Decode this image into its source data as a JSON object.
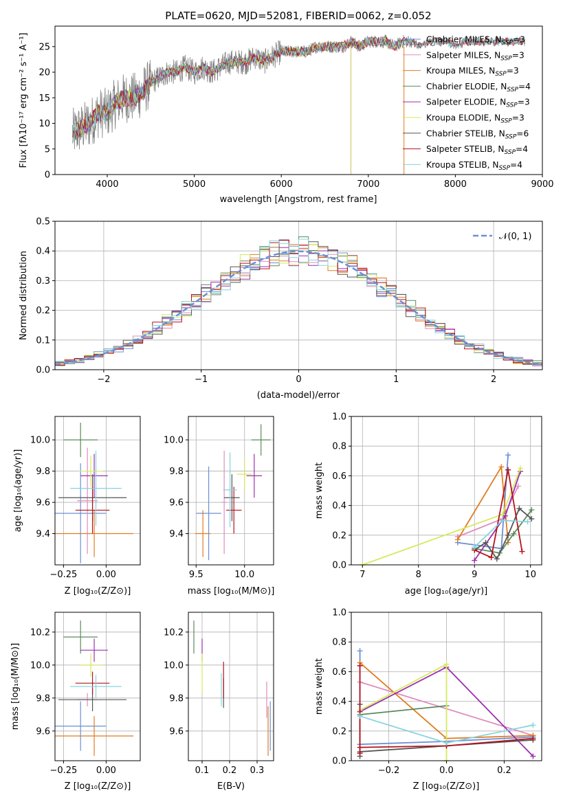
{
  "colors": {
    "chabrier_miles": "#6b8fd6",
    "salpeter_miles": "#e08bbd",
    "kroupa_miles": "#e07b1f",
    "chabrier_elodie": "#5a8a5a",
    "salpeter_elodie": "#9b2fae",
    "kroupa_elodie": "#d4ea5a",
    "chabrier_stelib": "#555555",
    "salpeter_stelib": "#b5121b",
    "kroupa_stelib": "#86d3dd",
    "data": "#808080"
  },
  "chart_data": [
    {
      "id": "spectrum",
      "type": "line",
      "title": "PLATE=0620, MJD=52081, FIBERID=0062, z=0.052",
      "xlabel": "wavelength [Angstrom, rest frame]",
      "ylabel": "Flux [fλ10⁻¹⁷ erg cm⁻² s⁻¹ A⁻¹]",
      "xlim": [
        3400,
        9000
      ],
      "ylim": [
        0,
        29
      ],
      "xticks": [
        "4000",
        "5000",
        "6000",
        "7000",
        "8000",
        "9000"
      ],
      "yticks": [
        "0",
        "5",
        "10",
        "15",
        "20",
        "25"
      ],
      "legend_position": "upper-right",
      "legend": [
        {
          "label": "Chabrier MILES, N",
          "sub": "SSP",
          "tail": "=3",
          "color": "chabrier_miles"
        },
        {
          "label": "Salpeter MILES, N",
          "sub": "SSP",
          "tail": "=3",
          "color": "salpeter_miles"
        },
        {
          "label": "Kroupa MILES, N",
          "sub": "SSP",
          "tail": "=3",
          "color": "kroupa_miles"
        },
        {
          "label": "Chabrier ELODIE, N",
          "sub": "SSP",
          "tail": "=4",
          "color": "chabrier_elodie"
        },
        {
          "label": "Salpeter ELODIE, N",
          "sub": "SSP",
          "tail": "=3",
          "color": "salpeter_elodie"
        },
        {
          "label": "Kroupa ELODIE, N",
          "sub": "SSP",
          "tail": "=3",
          "color": "kroupa_elodie"
        },
        {
          "label": "Chabrier STELIB, N",
          "sub": "SSP",
          "tail": "=6",
          "color": "chabrier_stelib"
        },
        {
          "label": "Salpeter STELIB, N",
          "sub": "SSP",
          "tail": "=4",
          "color": "salpeter_stelib"
        },
        {
          "label": "Kroupa STELIB, N",
          "sub": "SSP",
          "tail": "=4",
          "color": "kroupa_stelib"
        }
      ],
      "continuum": [
        [
          3600,
          8
        ],
        [
          3700,
          9
        ],
        [
          3800,
          10
        ],
        [
          3900,
          12
        ],
        [
          4000,
          12
        ],
        [
          4100,
          14
        ],
        [
          4200,
          15
        ],
        [
          4300,
          15
        ],
        [
          4400,
          16
        ],
        [
          4500,
          18
        ],
        [
          4600,
          19
        ],
        [
          4700,
          20
        ],
        [
          4800,
          20
        ],
        [
          4900,
          21
        ],
        [
          5000,
          20
        ],
        [
          5100,
          21
        ],
        [
          5200,
          20
        ],
        [
          5300,
          21
        ],
        [
          5400,
          22
        ],
        [
          5500,
          22
        ],
        [
          5600,
          22
        ],
        [
          5700,
          23
        ],
        [
          5800,
          22
        ],
        [
          5900,
          23
        ],
        [
          6000,
          24
        ],
        [
          6100,
          24
        ],
        [
          6200,
          24
        ],
        [
          6300,
          24
        ],
        [
          6400,
          25
        ],
        [
          6500,
          25
        ],
        [
          6600,
          25
        ],
        [
          6700,
          25
        ],
        [
          6800,
          26
        ],
        [
          6900,
          25
        ],
        [
          7000,
          26
        ],
        [
          7100,
          26
        ],
        [
          7200,
          26
        ],
        [
          7300,
          25
        ],
        [
          7400,
          26
        ],
        [
          7500,
          26
        ],
        [
          7600,
          25
        ],
        [
          7700,
          26
        ],
        [
          7800,
          26
        ],
        [
          7900,
          26
        ],
        [
          8000,
          25
        ],
        [
          8100,
          26
        ],
        [
          8200,
          26
        ],
        [
          8300,
          26
        ],
        [
          8400,
          26
        ],
        [
          8500,
          26
        ],
        [
          8600,
          26
        ],
        [
          8700,
          26
        ],
        [
          8800,
          26
        ]
      ]
    },
    {
      "id": "residuals",
      "type": "bar",
      "xlabel": "(data-model)/error",
      "ylabel": "Normed distribution",
      "xlim": [
        -2.5,
        2.5
      ],
      "ylim": [
        0,
        0.5
      ],
      "xticks": [
        "−2",
        "−1",
        "0",
        "1",
        "2"
      ],
      "yticks": [
        "0.0",
        "0.1",
        "0.2",
        "0.3",
        "0.4",
        "0.5"
      ],
      "legend_position": "upper-right",
      "legend": [
        {
          "label": "𝒩(0, 1)",
          "color": "chabrier_miles",
          "style": "dashed"
        }
      ]
    },
    {
      "id": "age_vs_z",
      "type": "scatter",
      "xlabel": "Z [log₁₀(Z/Z⊙)]",
      "ylabel": "age  [log₁₀(age/yr)]",
      "xlim": [
        -0.3,
        0.2
      ],
      "ylim": [
        9.2,
        10.15
      ],
      "xticks": [
        "−0.25",
        "0.00"
      ],
      "yticks": [
        "9.4",
        "9.6",
        "9.8",
        "10.0"
      ],
      "points": [
        {
          "x": -0.15,
          "y": 9.53,
          "xerr": 0.15,
          "yerr": 0.32,
          "color": "chabrier_miles"
        },
        {
          "x": -0.11,
          "y": 9.61,
          "xerr": 0.06,
          "yerr": 0.34,
          "color": "salpeter_miles"
        },
        {
          "x": -0.07,
          "y": 9.4,
          "xerr": 0.23,
          "yerr": 0.15,
          "color": "kroupa_miles"
        },
        {
          "x": -0.15,
          "y": 10.0,
          "xerr": 0.1,
          "yerr": 0.11,
          "color": "chabrier_elodie"
        },
        {
          "x": -0.07,
          "y": 9.77,
          "xerr": 0.08,
          "yerr": 0.14,
          "color": "salpeter_elodie"
        },
        {
          "x": -0.09,
          "y": 9.8,
          "xerr": 0.07,
          "yerr": 0.1,
          "color": "kroupa_elodie"
        },
        {
          "x": -0.08,
          "y": 9.63,
          "xerr": 0.2,
          "yerr": 0.15,
          "color": "chabrier_stelib"
        },
        {
          "x": -0.08,
          "y": 9.55,
          "xerr": 0.1,
          "yerr": 0.15,
          "color": "salpeter_stelib"
        },
        {
          "x": -0.06,
          "y": 9.69,
          "xerr": 0.15,
          "yerr": 0.24,
          "color": "kroupa_stelib"
        }
      ]
    },
    {
      "id": "age_vs_mass",
      "type": "scatter",
      "xlabel": "mass [log₁₀(M/M⊙)]",
      "xlim": [
        9.42,
        10.3
      ],
      "ylim": [
        9.2,
        10.15
      ],
      "xticks": [
        "9.5",
        "10.0"
      ],
      "yticks": [
        "9.4",
        "9.6",
        "9.8",
        "10.0"
      ],
      "points": [
        {
          "x": 9.63,
          "y": 9.53,
          "xerr": 0.13,
          "yerr": 0.3,
          "color": "chabrier_miles"
        },
        {
          "x": 9.79,
          "y": 9.6,
          "xerr": 0.03,
          "yerr": 0.33,
          "color": "salpeter_miles"
        },
        {
          "x": 9.57,
          "y": 9.4,
          "xerr": 0.08,
          "yerr": 0.15,
          "color": "kroupa_miles"
        },
        {
          "x": 10.17,
          "y": 10.0,
          "xerr": 0.1,
          "yerr": 0.1,
          "color": "chabrier_elodie"
        },
        {
          "x": 10.1,
          "y": 9.77,
          "xerr": 0.08,
          "yerr": 0.14,
          "color": "salpeter_elodie"
        },
        {
          "x": 10.0,
          "y": 9.78,
          "xerr": 0.08,
          "yerr": 0.1,
          "color": "kroupa_elodie"
        },
        {
          "x": 9.87,
          "y": 9.63,
          "xerr": 0.08,
          "yerr": 0.15,
          "color": "chabrier_stelib"
        },
        {
          "x": 9.89,
          "y": 9.55,
          "xerr": 0.08,
          "yerr": 0.15,
          "color": "salpeter_stelib"
        },
        {
          "x": 9.85,
          "y": 9.68,
          "xerr": 0.07,
          "yerr": 0.24,
          "color": "kroupa_stelib"
        }
      ]
    },
    {
      "id": "weight_vs_age",
      "type": "line",
      "xlabel": "age  [log₁₀(age/yr)]",
      "ylabel": "mass weight",
      "xlim": [
        6.8,
        10.2
      ],
      "ylim": [
        0,
        1
      ],
      "xticks": [
        "7",
        "8",
        "9",
        "10"
      ],
      "yticks": [
        "0.0",
        "0.2",
        "0.4",
        "0.6",
        "0.8",
        "1.0"
      ],
      "series": [
        {
          "color": "chabrier_miles",
          "points": [
            [
              8.7,
              0.15
            ],
            [
              9.48,
              0.11
            ],
            [
              9.6,
              0.74
            ]
          ]
        },
        {
          "color": "salpeter_miles",
          "points": [
            [
              8.7,
              0.19
            ],
            [
              9.5,
              0.31
            ],
            [
              9.78,
              0.53
            ]
          ]
        },
        {
          "color": "kroupa_miles",
          "points": [
            [
              8.7,
              0.17
            ],
            [
              9.48,
              0.66
            ],
            [
              9.6,
              0.15
            ]
          ]
        },
        {
          "color": "chabrier_elodie",
          "points": [
            [
              9.0,
              0.11
            ],
            [
              9.45,
              0.08
            ],
            [
              9.7,
              0.21
            ],
            [
              10.02,
              0.37
            ]
          ]
        },
        {
          "color": "salpeter_elodie",
          "points": [
            [
              9.0,
              0.03
            ],
            [
              9.55,
              0.33
            ],
            [
              9.82,
              0.63
            ]
          ]
        },
        {
          "color": "kroupa_elodie",
          "points": [
            [
              7.0,
              0.0
            ],
            [
              9.5,
              0.34
            ],
            [
              9.82,
              0.65
            ]
          ]
        },
        {
          "color": "chabrier_stelib",
          "points": [
            [
              9.0,
              0.1
            ],
            [
              9.2,
              0.15
            ],
            [
              9.4,
              0.04
            ],
            [
              9.6,
              0.2
            ],
            [
              9.8,
              0.38
            ],
            [
              10.02,
              0.31
            ]
          ]
        },
        {
          "color": "salpeter_stelib",
          "points": [
            [
              9.0,
              0.1
            ],
            [
              9.3,
              0.05
            ],
            [
              9.6,
              0.64
            ],
            [
              9.85,
              0.09
            ]
          ]
        },
        {
          "color": "kroupa_stelib",
          "points": [
            [
              9.0,
              0.12
            ],
            [
              9.5,
              0.3
            ],
            [
              9.95,
              0.29
            ]
          ]
        }
      ]
    },
    {
      "id": "mass_vs_z",
      "type": "scatter",
      "xlabel": "Z [log₁₀(Z/Z⊙)]",
      "ylabel": "mass [log₁₀(M/M⊙)]",
      "xlim": [
        -0.3,
        0.2
      ],
      "ylim": [
        9.42,
        10.32
      ],
      "xticks": [
        "−0.25",
        "0.00"
      ],
      "yticks": [
        "9.6",
        "9.8",
        "10.0",
        "10.2"
      ],
      "points": [
        {
          "x": -0.15,
          "y": 9.63,
          "xerr": 0.15,
          "yerr": 0.15,
          "color": "chabrier_miles"
        },
        {
          "x": -0.11,
          "y": 9.79,
          "xerr": 0.06,
          "yerr": 0.04,
          "color": "salpeter_miles"
        },
        {
          "x": -0.07,
          "y": 9.57,
          "xerr": 0.23,
          "yerr": 0.12,
          "color": "kroupa_miles"
        },
        {
          "x": -0.15,
          "y": 10.17,
          "xerr": 0.1,
          "yerr": 0.1,
          "color": "chabrier_elodie"
        },
        {
          "x": -0.07,
          "y": 10.09,
          "xerr": 0.08,
          "yerr": 0.07,
          "color": "salpeter_elodie"
        },
        {
          "x": -0.09,
          "y": 10.0,
          "xerr": 0.07,
          "yerr": 0.07,
          "color": "kroupa_elodie"
        },
        {
          "x": -0.08,
          "y": 9.79,
          "xerr": 0.2,
          "yerr": 0.07,
          "color": "chabrier_stelib"
        },
        {
          "x": -0.08,
          "y": 9.89,
          "xerr": 0.1,
          "yerr": 0.07,
          "color": "salpeter_stelib"
        },
        {
          "x": -0.06,
          "y": 9.87,
          "xerr": 0.15,
          "yerr": 0.07,
          "color": "kroupa_stelib"
        }
      ]
    },
    {
      "id": "mass_vs_ebv",
      "type": "scatter",
      "xlabel": "E(B-V)",
      "xlim": [
        0.05,
        0.36
      ],
      "ylim": [
        9.42,
        10.32
      ],
      "xticks": [
        "0.1",
        "0.2",
        "0.3"
      ],
      "yticks": [
        "9.6",
        "9.8",
        "10.0",
        "10.2"
      ],
      "points": [
        {
          "x": 0.348,
          "y": 9.63,
          "yerr": 0.15,
          "color": "chabrier_miles"
        },
        {
          "x": 0.335,
          "y": 9.79,
          "yerr": 0.11,
          "color": "salpeter_miles"
        },
        {
          "x": 0.34,
          "y": 9.6,
          "yerr": 0.15,
          "color": "kroupa_miles"
        },
        {
          "x": 0.07,
          "y": 10.17,
          "yerr": 0.1,
          "color": "chabrier_elodie"
        },
        {
          "x": 0.1,
          "y": 10.09,
          "yerr": 0.07,
          "color": "salpeter_elodie"
        },
        {
          "x": 0.1,
          "y": 9.95,
          "yerr": 0.12,
          "color": "kroupa_elodie"
        },
        {
          "x": 0.178,
          "y": 9.83,
          "yerr": 0.09,
          "color": "chabrier_stelib"
        },
        {
          "x": 0.178,
          "y": 9.91,
          "yerr": 0.11,
          "color": "salpeter_stelib"
        },
        {
          "x": 0.17,
          "y": 9.85,
          "yerr": 0.1,
          "color": "kroupa_stelib"
        }
      ]
    },
    {
      "id": "weight_vs_z",
      "type": "line",
      "xlabel": "Z [log₁₀(Z/Z⊙)]",
      "ylabel": "mass weight",
      "xlim": [
        -0.33,
        0.33
      ],
      "ylim": [
        0,
        1
      ],
      "xticks": [
        "−0.2",
        "0.0",
        "0.2"
      ],
      "yticks": [
        "0.0",
        "0.2",
        "0.4",
        "0.6",
        "0.8",
        "1.0"
      ],
      "series": [
        {
          "color": "chabrier_miles",
          "points": [
            [
              -0.3,
              0.74
            ],
            [
              -0.3,
              0.11
            ],
            [
              0.0,
              0.13
            ],
            [
              0.3,
              0.16
            ]
          ]
        },
        {
          "color": "salpeter_miles",
          "points": [
            [
              -0.3,
              0.53
            ],
            [
              0.3,
              0.17
            ]
          ]
        },
        {
          "color": "kroupa_miles",
          "points": [
            [
              -0.3,
              0.66
            ],
            [
              0.0,
              0.15
            ],
            [
              0.3,
              0.17
            ]
          ]
        },
        {
          "color": "chabrier_elodie",
          "points": [
            [
              -0.3,
              0.31
            ],
            [
              0.0,
              0.37
            ]
          ]
        },
        {
          "color": "salpeter_elodie",
          "points": [
            [
              -0.3,
              0.33
            ],
            [
              0.0,
              0.63
            ],
            [
              0.3,
              0.03
            ]
          ]
        },
        {
          "color": "kroupa_elodie",
          "points": [
            [
              -0.3,
              0.34
            ],
            [
              0.0,
              0.65
            ],
            [
              0.0,
              0.0
            ]
          ]
        },
        {
          "color": "chabrier_stelib",
          "points": [
            [
              -0.3,
              0.38
            ],
            [
              -0.3,
              0.03
            ],
            [
              -0.3,
              0.06
            ],
            [
              0.0,
              0.1
            ],
            [
              0.3,
              0.14
            ]
          ]
        },
        {
          "color": "salpeter_stelib",
          "points": [
            [
              -0.3,
              0.64
            ],
            [
              -0.3,
              0.05
            ],
            [
              -0.3,
              0.09
            ],
            [
              0.0,
              0.1
            ],
            [
              0.3,
              0.15
            ]
          ]
        },
        {
          "color": "kroupa_stelib",
          "points": [
            [
              -0.3,
              0.3
            ],
            [
              0.0,
              0.12
            ],
            [
              0.3,
              0.24
            ]
          ]
        }
      ]
    }
  ]
}
